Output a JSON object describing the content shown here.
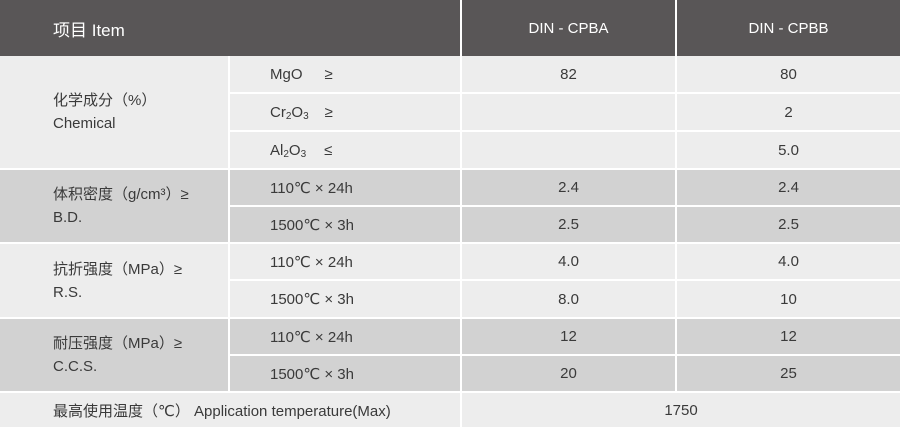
{
  "header": {
    "item": "项目 Item",
    "col1": "DIN - CPBA",
    "col2": "DIN - CPBB"
  },
  "colors": {
    "header_bg": "#595657",
    "band_light": "#ededed",
    "band_dark": "#d2d2d2"
  },
  "groups": [
    {
      "label_cn": "化学成分（%）",
      "label_en": "Chemical",
      "rows": [
        {
          "cond_main": "MgO",
          "cond_sub": "",
          "cond_main2": "",
          "cond_sub2": "",
          "op": "≥",
          "a": "82",
          "b": "80"
        },
        {
          "cond_main": "Cr",
          "cond_sub": "2",
          "cond_main2": "O",
          "cond_sub2": "3",
          "op": "≥",
          "a": "",
          "b": "2"
        },
        {
          "cond_main": "Al",
          "cond_sub": "2",
          "cond_main2": "O",
          "cond_sub2": "3",
          "op": "≤",
          "a": "",
          "b": "5.0"
        }
      ]
    },
    {
      "label_cn": "体积密度（g/cm³）≥",
      "label_en": "B.D.",
      "rows": [
        {
          "cond": "110℃ × 24h",
          "a": "2.4",
          "b": "2.4"
        },
        {
          "cond": "1500℃ × 3h",
          "a": "2.5",
          "b": "2.5"
        }
      ]
    },
    {
      "label_cn": "抗折强度（MPa）≥",
      "label_en": "R.S.",
      "rows": [
        {
          "cond": "110℃ × 24h",
          "a": "4.0",
          "b": "4.0"
        },
        {
          "cond": "1500℃ × 3h",
          "a": "8.0",
          "b": "10"
        }
      ]
    },
    {
      "label_cn": "耐压强度（MPa）≥",
      "label_en": "C.C.S.",
      "rows": [
        {
          "cond": "110℃ × 24h",
          "a": "12",
          "b": "12"
        },
        {
          "cond": "1500℃ × 3h",
          "a": "20",
          "b": "25"
        }
      ]
    }
  ],
  "footer": {
    "label": "最高使用温度（℃） Application temperature(Max)",
    "value": "1750"
  }
}
